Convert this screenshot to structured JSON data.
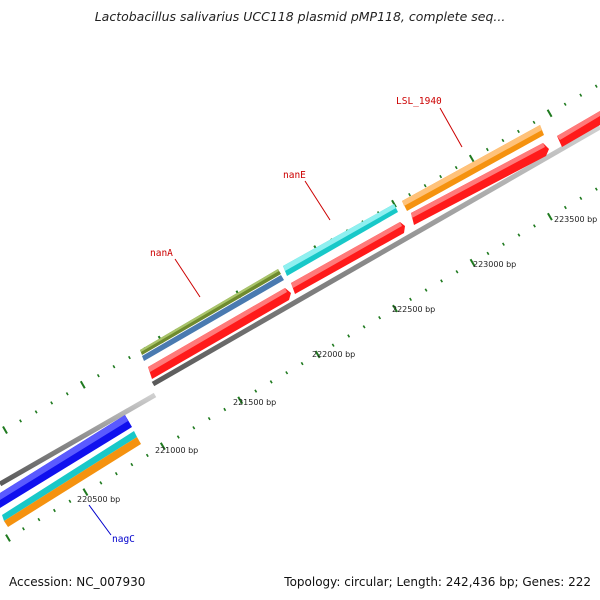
{
  "title": "Lactobacillus salivarius UCC118 plasmid pMP118, complete seq...",
  "footer": {
    "accession": "Accession: NC_007930",
    "topology": "Topology: circular; Length: 242,436 bp; Genes: 222"
  },
  "colors": {
    "backbone": "#8c8c8c",
    "tick": "#1f7a1f",
    "label_red": "#cc0000",
    "label_blue": "#0000cc",
    "red": "#ff1a1a",
    "orange": "#f5920f",
    "cyan": "#18c8c8",
    "olive": "#6e8a2e",
    "steel": "#4a7ab0",
    "blue": "#1010ee"
  },
  "scale_labels": [
    "220500 bp",
    "221000 bp",
    "221500 bp",
    "222000 bp",
    "222500 bp",
    "223000 bp",
    "223500 bp"
  ],
  "gene_labels": [
    {
      "text": "LSL_1940",
      "color": "label_red"
    },
    {
      "text": "nanE",
      "color": "label_red"
    },
    {
      "text": "nanA",
      "color": "label_red"
    },
    {
      "text": "nagC",
      "color": "label_blue"
    }
  ]
}
